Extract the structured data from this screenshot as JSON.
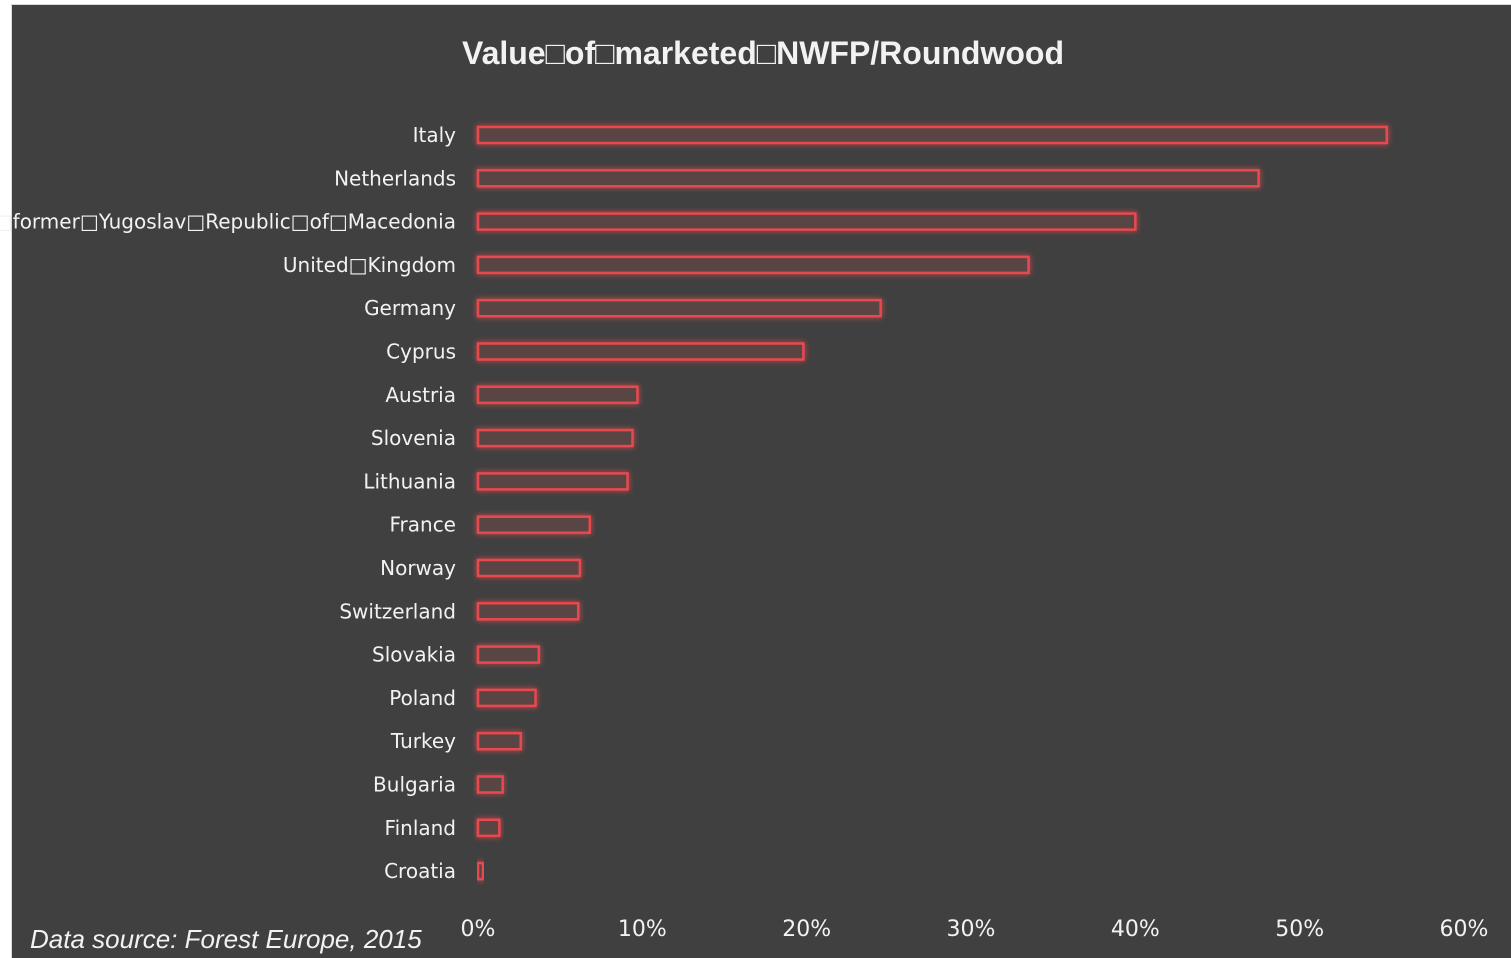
{
  "chart_data": {
    "type": "bar",
    "orientation": "horizontal",
    "title": "Value□of□marketed□NWFP/Roundwood",
    "categories": [
      "Italy",
      "Netherlands",
      "The□former□Yugoslav□Republic□of□Macedonia",
      "United□Kingdom",
      "Germany",
      "Cyprus",
      "Austria",
      "Slovenia",
      "Lithuania",
      "France",
      "Norway",
      "Switzerland",
      "Slovakia",
      "Poland",
      "Turkey",
      "Bulgaria",
      "Finland",
      "Croatia"
    ],
    "values": [
      55.3,
      47.5,
      40.0,
      33.5,
      24.5,
      19.8,
      9.7,
      9.4,
      9.1,
      6.8,
      6.2,
      6.1,
      3.7,
      3.5,
      2.6,
      1.5,
      1.3,
      0.3
    ],
    "value_unit": "%",
    "xlim": [
      0,
      60
    ],
    "xticks": [
      "0%",
      "10%",
      "20%",
      "30%",
      "40%",
      "50%",
      "60%"
    ],
    "grid": false,
    "legend": "none",
    "bar_color": "#e8494f",
    "background_color": "#404040"
  },
  "source_note": "Data source: Forest Europe, 2015"
}
